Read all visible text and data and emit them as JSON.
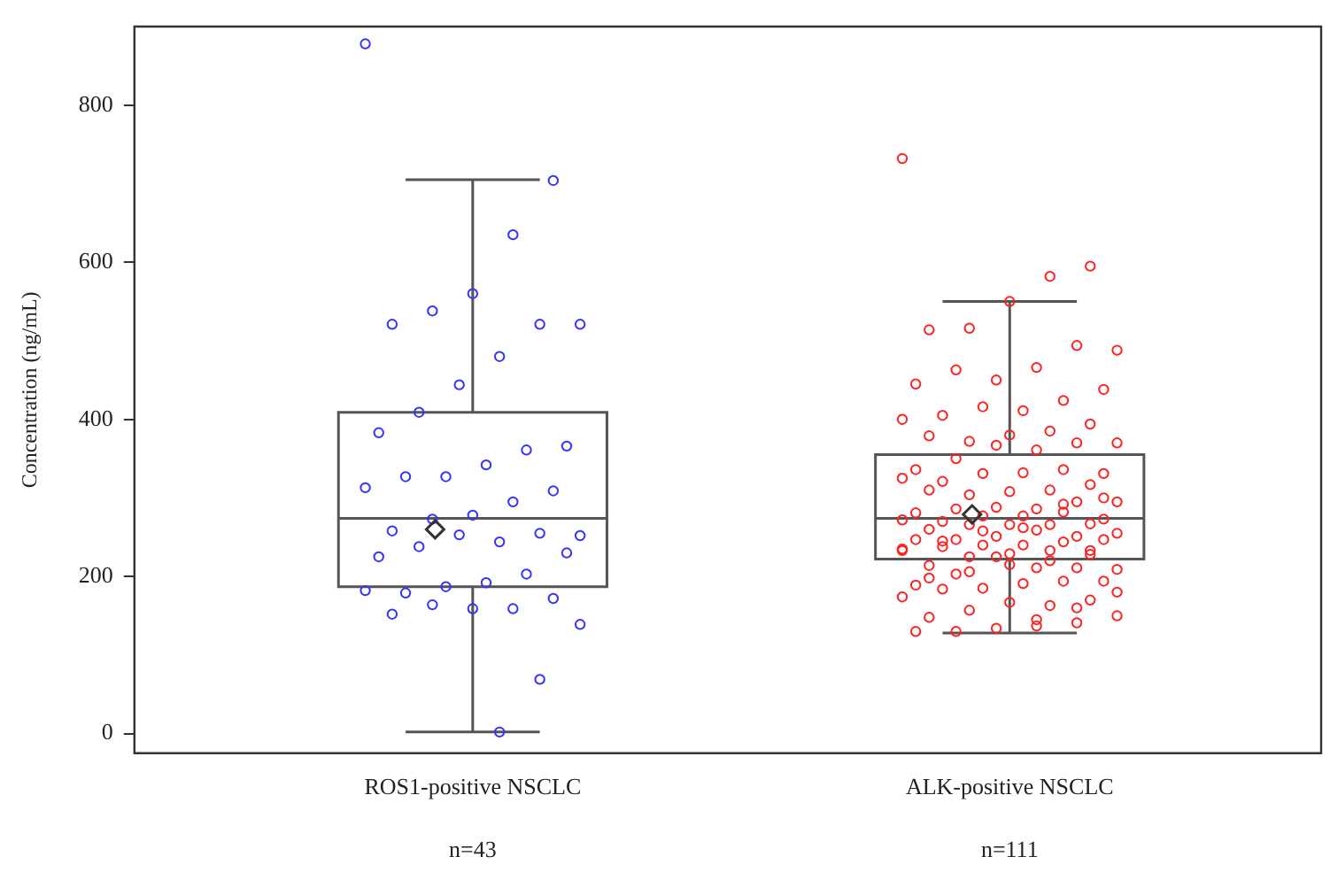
{
  "chart_data": {
    "type": "box",
    "ylabel": "Concentration (ng/mL)",
    "categories": [
      "ROS1-positive NSCLC",
      "ALK-positive NSCLC"
    ],
    "boxes": [
      {
        "low": 2,
        "q1": 187,
        "median": 274,
        "q3": 409,
        "high": 705,
        "mean": 260
      },
      {
        "low": 128,
        "q1": 222,
        "median": 274,
        "q3": 355,
        "high": 550,
        "mean": 279
      }
    ],
    "series": [
      {
        "type": "scatter",
        "color": "#3333ff",
        "x": [
          "ROS1-positive NSCLC",
          "ROS1-positive NSCLC",
          "ROS1-positive NSCLC",
          "ROS1-positive NSCLC",
          "ROS1-positive NSCLC",
          "ROS1-positive NSCLC",
          "ROS1-positive NSCLC",
          "ROS1-positive NSCLC",
          "ROS1-positive NSCLC",
          "ROS1-positive NSCLC",
          "ROS1-positive NSCLC",
          "ROS1-positive NSCLC",
          "ROS1-positive NSCLC",
          "ROS1-positive NSCLC",
          "ROS1-positive NSCLC",
          "ROS1-positive NSCLC",
          "ROS1-positive NSCLC",
          "ROS1-positive NSCLC",
          "ROS1-positive NSCLC",
          "ROS1-positive NSCLC",
          "ROS1-positive NSCLC",
          "ROS1-positive NSCLC",
          "ROS1-positive NSCLC",
          "ROS1-positive NSCLC",
          "ROS1-positive NSCLC",
          "ROS1-positive NSCLC",
          "ROS1-positive NSCLC",
          "ROS1-positive NSCLC",
          "ROS1-positive NSCLC",
          "ROS1-positive NSCLC",
          "ROS1-positive NSCLC",
          "ROS1-positive NSCLC",
          "ROS1-positive NSCLC",
          "ROS1-positive NSCLC",
          "ROS1-positive NSCLC",
          "ROS1-positive NSCLC",
          "ROS1-positive NSCLC",
          "ROS1-positive NSCLC",
          "ROS1-positive NSCLC",
          "ROS1-positive NSCLC",
          "ROS1-positive NSCLC",
          "ROS1-positive NSCLC",
          "ROS1-positive NSCLC"
        ],
        "values": [
          878,
          704,
          635,
          560,
          538,
          521,
          521,
          521,
          480,
          444,
          409,
          383,
          366,
          361,
          342,
          327,
          327,
          313,
          309,
          295,
          278,
          273,
          258,
          252,
          255,
          244,
          253,
          238,
          225,
          230,
          203,
          192,
          187,
          179,
          182,
          172,
          159,
          159,
          164,
          152,
          139,
          69,
          2
        ]
      },
      {
        "type": "scatter",
        "color": "#ff2222",
        "x": [
          "ALK-positive NSCLC",
          "ALK-positive NSCLC",
          "ALK-positive NSCLC",
          "ALK-positive NSCLC",
          "ALK-positive NSCLC",
          "ALK-positive NSCLC",
          "ALK-positive NSCLC",
          "ALK-positive NSCLC",
          "ALK-positive NSCLC",
          "ALK-positive NSCLC",
          "ALK-positive NSCLC",
          "ALK-positive NSCLC",
          "ALK-positive NSCLC",
          "ALK-positive NSCLC",
          "ALK-positive NSCLC",
          "ALK-positive NSCLC",
          "ALK-positive NSCLC",
          "ALK-positive NSCLC",
          "ALK-positive NSCLC",
          "ALK-positive NSCLC",
          "ALK-positive NSCLC",
          "ALK-positive NSCLC",
          "ALK-positive NSCLC",
          "ALK-positive NSCLC",
          "ALK-positive NSCLC",
          "ALK-positive NSCLC",
          "ALK-positive NSCLC",
          "ALK-positive NSCLC",
          "ALK-positive NSCLC",
          "ALK-positive NSCLC",
          "ALK-positive NSCLC",
          "ALK-positive NSCLC",
          "ALK-positive NSCLC",
          "ALK-positive NSCLC",
          "ALK-positive NSCLC",
          "ALK-positive NSCLC",
          "ALK-positive NSCLC",
          "ALK-positive NSCLC",
          "ALK-positive NSCLC",
          "ALK-positive NSCLC",
          "ALK-positive NSCLC",
          "ALK-positive NSCLC",
          "ALK-positive NSCLC",
          "ALK-positive NSCLC",
          "ALK-positive NSCLC",
          "ALK-positive NSCLC",
          "ALK-positive NSCLC",
          "ALK-positive NSCLC",
          "ALK-positive NSCLC",
          "ALK-positive NSCLC",
          "ALK-positive NSCLC",
          "ALK-positive NSCLC",
          "ALK-positive NSCLC",
          "ALK-positive NSCLC",
          "ALK-positive NSCLC",
          "ALK-positive NSCLC",
          "ALK-positive NSCLC",
          "ALK-positive NSCLC",
          "ALK-positive NSCLC",
          "ALK-positive NSCLC",
          "ALK-positive NSCLC",
          "ALK-positive NSCLC",
          "ALK-positive NSCLC",
          "ALK-positive NSCLC",
          "ALK-positive NSCLC",
          "ALK-positive NSCLC",
          "ALK-positive NSCLC",
          "ALK-positive NSCLC",
          "ALK-positive NSCLC",
          "ALK-positive NSCLC",
          "ALK-positive NSCLC",
          "ALK-positive NSCLC",
          "ALK-positive NSCLC",
          "ALK-positive NSCLC",
          "ALK-positive NSCLC",
          "ALK-positive NSCLC",
          "ALK-positive NSCLC",
          "ALK-positive NSCLC",
          "ALK-positive NSCLC",
          "ALK-positive NSCLC",
          "ALK-positive NSCLC",
          "ALK-positive NSCLC",
          "ALK-positive NSCLC",
          "ALK-positive NSCLC",
          "ALK-positive NSCLC",
          "ALK-positive NSCLC",
          "ALK-positive NSCLC",
          "ALK-positive NSCLC",
          "ALK-positive NSCLC",
          "ALK-positive NSCLC",
          "ALK-positive NSCLC",
          "ALK-positive NSCLC",
          "ALK-positive NSCLC",
          "ALK-positive NSCLC",
          "ALK-positive NSCLC",
          "ALK-positive NSCLC",
          "ALK-positive NSCLC",
          "ALK-positive NSCLC",
          "ALK-positive NSCLC",
          "ALK-positive NSCLC",
          "ALK-positive NSCLC",
          "ALK-positive NSCLC",
          "ALK-positive NSCLC",
          "ALK-positive NSCLC",
          "ALK-positive NSCLC",
          "ALK-positive NSCLC",
          "ALK-positive NSCLC",
          "ALK-positive NSCLC",
          "ALK-positive NSCLC",
          "ALK-positive NSCLC",
          "ALK-positive NSCLC"
        ],
        "values": [
          732,
          595,
          582,
          550,
          516,
          514,
          488,
          494,
          466,
          450,
          463,
          445,
          438,
          424,
          411,
          416,
          405,
          400,
          394,
          385,
          380,
          372,
          379,
          370,
          370,
          361,
          367,
          350,
          336,
          331,
          336,
          332,
          331,
          321,
          325,
          317,
          310,
          308,
          304,
          310,
          295,
          295,
          286,
          288,
          286,
          281,
          273,
          282,
          277,
          277,
          270,
          272,
          267,
          266,
          266,
          266,
          260,
          255,
          251,
          259,
          251,
          247,
          247,
          247,
          244,
          240,
          240,
          238,
          233,
          233,
          233,
          229,
          225,
          214,
          209,
          211,
          211,
          225,
          203,
          189,
          194,
          194,
          191,
          185,
          184,
          174,
          170,
          163,
          167,
          157,
          148,
          150,
          141,
          137,
          134,
          130,
          130,
          300,
          292,
          262,
          258,
          245,
          235,
          228,
          220,
          215,
          206,
          198,
          180,
          160,
          145
        ]
      }
    ],
    "ylim": [
      -25,
      900
    ],
    "yticks": [
      0,
      200,
      400,
      600,
      800
    ],
    "marker": "circle",
    "legend": false,
    "grid": false,
    "annotations": [
      "n=43",
      "n=111"
    ]
  }
}
